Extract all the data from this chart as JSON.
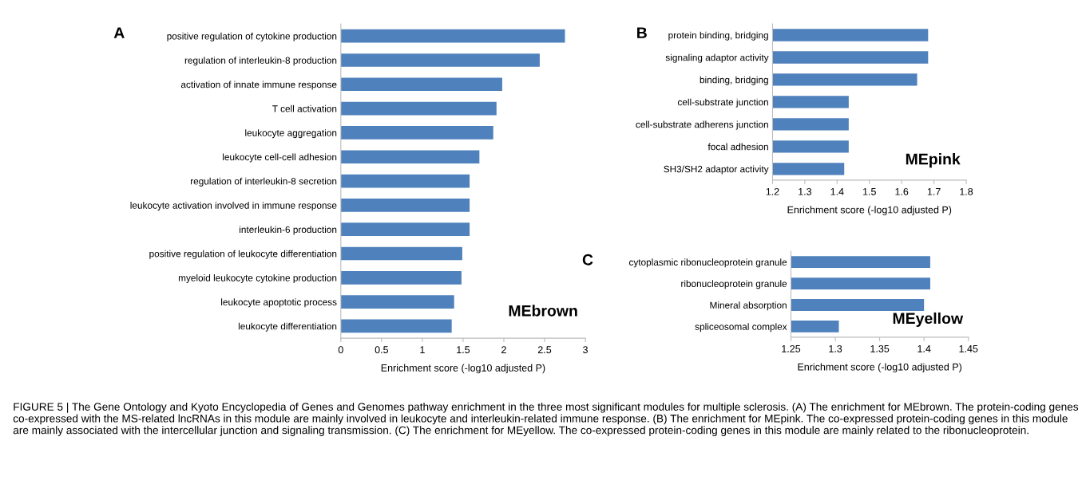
{
  "chart_data": [
    {
      "type": "bar",
      "orientation": "horizontal",
      "xlabel": "Enrichment score (-log10 adjusted P)",
      "categories": [
        "positive regulation of cytokine production",
        "regulation of interleukin-8 production",
        "activation of innate immune response",
        "T cell activation",
        "leukocyte aggregation",
        "leukocyte cell-cell adhesion",
        "regulation of interleukin-8 secretion",
        "leukocyte activation involved in immune response",
        "interleukin-6 production",
        "positive regulation of leukocyte differentiation",
        "myeloid leukocyte cytokine production",
        "leukocyte apoptotic process",
        "leukocyte differentiation"
      ],
      "values": [
        2.75,
        2.44,
        1.98,
        1.91,
        1.87,
        1.7,
        1.58,
        1.58,
        1.58,
        1.49,
        1.48,
        1.39,
        1.36
      ],
      "color": "#4f81bd",
      "xlim": [
        0,
        3
      ],
      "xticks": [
        0,
        0.5,
        1,
        1.5,
        2,
        2.5,
        3
      ],
      "grid": false,
      "annotations": [
        "A",
        "MEbrown",
        "FIGURE 5 | The Gene Ontology and Kyoto Encyclopedia of Genes and Genomes pathway enrichment in the three most significant modules for multiple sclerosis. (A) The enrichment for MEbrown. The protein-coding genes co-expressed with the MS-related lncRNAs in this module are mainly involved in leukocyte and interleukin-related immune response. (B) The enrichment for MEpink. The co-expressed protein-coding genes in this module are mainly associated with the intercellular junction and signaling transmission. (C) The enrichment for MEyellow. The co-expressed protein-coding genes in this module are mainly related to the ribonucleoprotein."
      ]
    },
    {
      "type": "bar",
      "orientation": "horizontal",
      "xlabel": "Enrichment score (-log10 adjusted P)",
      "categories": [
        "protein binding, bridging",
        "signaling adaptor activity",
        "binding, bridging",
        "cell-substrate junction",
        "cell-substrate adherens junction",
        "focal adhesion",
        "SH3/SH2 adaptor activity"
      ],
      "values": [
        1.682,
        1.682,
        1.648,
        1.436,
        1.436,
        1.436,
        1.422
      ],
      "color": "#4f81bd",
      "xlim": [
        1.2,
        1.8
      ],
      "xticks": [
        1.2,
        1.3,
        1.4,
        1.5,
        1.6,
        1.7,
        1.8
      ],
      "grid": false,
      "annotations": [
        "B",
        "MEpink"
      ]
    },
    {
      "type": "bar",
      "orientation": "horizontal",
      "xlabel": "Enrichment score (-log10 adjusted P)",
      "categories": [
        "cytoplasmic ribonucleoprotein granule",
        "ribonucleoprotein granule",
        "Mineral absorption",
        "spliceosomal complex"
      ],
      "values": [
        1.407,
        1.407,
        1.4,
        1.304
      ],
      "color": "#4f81bd",
      "xlim": [
        1.25,
        1.45
      ],
      "xticks": [
        1.25,
        1.3,
        1.35,
        1.4,
        1.45
      ],
      "grid": false,
      "annotations": [
        "C",
        "MEyellow"
      ]
    }
  ]
}
